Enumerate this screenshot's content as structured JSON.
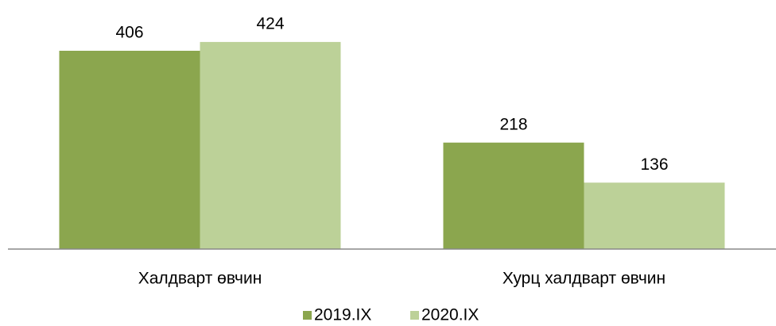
{
  "chart_data": {
    "type": "bar",
    "categories": [
      "Халдварт өвчин",
      "Хурц халдварт өвчин"
    ],
    "series": [
      {
        "name": "2019.IX",
        "color": "#8ba64e",
        "values": [
          406,
          218
        ]
      },
      {
        "name": "2020.IX",
        "color": "#bcd198",
        "values": [
          424,
          136
        ]
      }
    ],
    "legend": "bottom"
  }
}
